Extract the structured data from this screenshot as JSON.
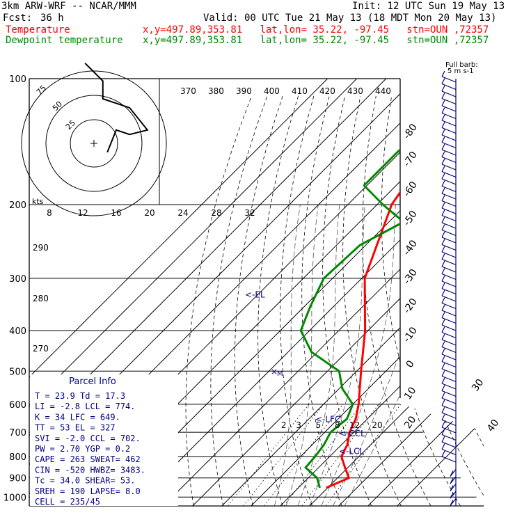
{
  "header": {
    "model": "3km ARW-WRF -- NCAR/MMM",
    "init": "Init: 12 UTC Sun 19 May 13",
    "fcst_label": "Fcst:",
    "fcst_value": "36 h",
    "valid": "Valid: 00 UTC Tue 21 May 13 (18 MDT Mon 20 May 13)",
    "temp_label": "Temperature",
    "dew_label": "Dewpoint temperature",
    "loc_info": "x,y=497.89,353.81   lat,lon= 35.22, -97.45   stn=OUN ,72357"
  },
  "colors": {
    "temperature": "#ff0000",
    "dewpoint": "#008800",
    "annotation": "#000080",
    "grid": "#000000"
  },
  "chart_data": {
    "type": "line",
    "title": "",
    "xlabel": "",
    "ylabel": "",
    "pressure_ticks": [
      "100",
      "200",
      "300",
      "400",
      "500",
      "600",
      "700",
      "800",
      "900",
      "1000"
    ],
    "pressure_range": [
      1000,
      100
    ],
    "isotherm_labels": [
      "-80",
      "-70",
      "-60",
      "-50",
      "-40",
      "-30",
      "-20",
      "-10",
      "0",
      "10",
      "20",
      "30",
      "40"
    ],
    "isentrope_labels_top": [
      "370",
      "380",
      "390",
      "400",
      "410",
      "420",
      "430",
      "440"
    ],
    "isentrope_labels_left": [
      "290",
      "280",
      "270"
    ],
    "mixing_ratio_labels": [
      "2",
      "3",
      "5",
      "8",
      "12",
      "20"
    ],
    "series": [
      {
        "name": "Temperature",
        "values": [
          [
            100,
            -60.5
          ],
          [
            150,
            -60.5
          ],
          [
            200,
            -55
          ],
          [
            300,
            -39
          ],
          [
            400,
            -21
          ],
          [
            500,
            -8.5
          ],
          [
            600,
            2
          ],
          [
            650,
            6
          ],
          [
            700,
            8.5
          ],
          [
            750,
            12
          ],
          [
            800,
            14
          ],
          [
            850,
            19
          ],
          [
            900,
            23.9
          ],
          [
            950,
            19.5
          ]
        ]
      },
      {
        "name": "Dewpoint temperature",
        "values": [
          [
            100,
            -68
          ],
          [
            150,
            -71
          ],
          [
            180,
            -71
          ],
          [
            200,
            -58
          ],
          [
            220,
            -45
          ],
          [
            250,
            -52
          ],
          [
            300,
            -53
          ],
          [
            350,
            -48
          ],
          [
            400,
            -43
          ],
          [
            450,
            -32
          ],
          [
            500,
            -16
          ],
          [
            550,
            -9
          ],
          [
            600,
            0
          ],
          [
            650,
            3
          ],
          [
            700,
            2
          ],
          [
            750,
            4
          ],
          [
            800,
            5
          ],
          [
            850,
            5.5
          ],
          [
            900,
            13
          ],
          [
            950,
            17.3
          ]
        ]
      }
    ],
    "annotations": [
      {
        "label": "<-EL",
        "p": 327
      },
      {
        "label": "<-LFC",
        "p": 649
      },
      {
        "label": "<-CCL",
        "p": 702
      },
      {
        "label": "<-LCL",
        "p": 774
      }
    ],
    "hodograph": {
      "ring_labels": [
        "25",
        "50",
        "75"
      ],
      "path": [
        [
          3,
          2
        ],
        [
          5,
          -3
        ],
        [
          8,
          -2
        ],
        [
          12,
          -3
        ],
        [
          8,
          -8
        ],
        [
          2,
          -10
        ],
        [
          2,
          -14
        ],
        [
          -2,
          -18
        ]
      ]
    },
    "wind_axis": {
      "kts_label": "kts",
      "labels": [
        "8",
        "12",
        "16",
        "20",
        "24",
        "28",
        "32"
      ]
    },
    "full_barb_key": [
      "Full barb:",
      "5 m s-1"
    ]
  },
  "parcel_info": {
    "title": "Parcel Info",
    "rows": [
      "T   =   23.9 Td  =  17.3",
      "LI  =   -2.8 LCL =  774.",
      "K   =     34 LFC =  649.",
      "TT  =     53 EL  =   327",
      "SVI =   -2.0 CCL =  702.",
      "PW  =   2.70 YGP =   0.2",
      "CAPE =   263 SWEAT=  462",
      "CIN  =  -520 HWBZ= 3483.",
      "Tc  =   34.0 SHEAR=  53.",
      "SREH =   190 LAPSE=  8.0",
      "CELL = 235/45"
    ]
  }
}
